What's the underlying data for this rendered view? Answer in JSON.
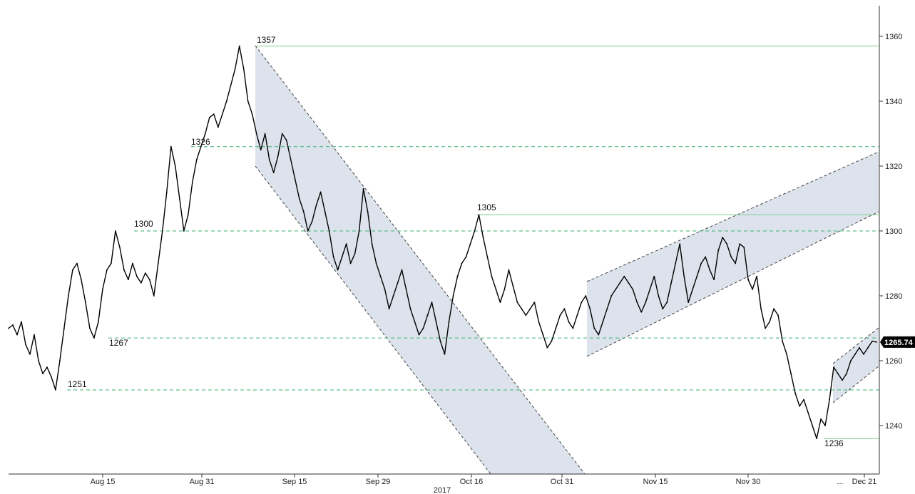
{
  "chart_data": {
    "type": "line",
    "title": "",
    "xlabel": "2017",
    "ylabel": "",
    "ylim": [
      1224,
      1370
    ],
    "grid": false,
    "y_ticks": [
      1240,
      1260,
      1280,
      1300,
      1320,
      1340,
      1360
    ],
    "x_ticks": [
      "Aug 15",
      "Aug 31",
      "Sep 15",
      "Sep 29",
      "Oct 16",
      "Oct 31",
      "Nov 15",
      "Nov 30",
      "...",
      "Dec 21"
    ],
    "series": [
      {
        "values": [
          1270,
          1271,
          1268,
          1272,
          1265,
          1262,
          1268,
          1260,
          1256,
          1258,
          1255,
          1251,
          1260,
          1270,
          1280,
          1288,
          1290,
          1285,
          1278,
          1270,
          1267,
          1272,
          1282,
          1288,
          1290,
          1300,
          1295,
          1288,
          1285,
          1290,
          1286,
          1284,
          1287,
          1285,
          1280,
          1290,
          1300,
          1312,
          1326,
          1320,
          1310,
          1300,
          1305,
          1315,
          1322,
          1326,
          1330,
          1335,
          1336,
          1332,
          1336,
          1340,
          1345,
          1350,
          1357,
          1350,
          1340,
          1336,
          1330,
          1325,
          1330,
          1322,
          1318,
          1323,
          1330,
          1328,
          1322,
          1316,
          1310,
          1306,
          1300,
          1303,
          1308,
          1312,
          1306,
          1300,
          1292,
          1288,
          1292,
          1296,
          1290,
          1293,
          1300,
          1313,
          1306,
          1296,
          1290,
          1286,
          1282,
          1276,
          1280,
          1284,
          1288,
          1282,
          1276,
          1272,
          1268,
          1270,
          1274,
          1278,
          1272,
          1266,
          1262,
          1272,
          1280,
          1286,
          1290,
          1292,
          1296,
          1300,
          1305,
          1298,
          1292,
          1286,
          1282,
          1278,
          1282,
          1288,
          1283,
          1278,
          1276,
          1274,
          1276,
          1278,
          1272,
          1268,
          1264,
          1266,
          1270,
          1274,
          1276,
          1272,
          1270,
          1274,
          1278,
          1280,
          1276,
          1270,
          1268,
          1272,
          1276,
          1280,
          1282,
          1284,
          1286,
          1284,
          1282,
          1278,
          1275,
          1278,
          1282,
          1286,
          1280,
          1276,
          1278,
          1284,
          1290,
          1296,
          1286,
          1278,
          1282,
          1286,
          1290,
          1292,
          1288,
          1285,
          1294,
          1298,
          1296,
          1292,
          1290,
          1296,
          1295,
          1285,
          1282,
          1286,
          1276,
          1270,
          1272,
          1276,
          1274,
          1266,
          1262,
          1256,
          1250,
          1246,
          1248,
          1244,
          1240,
          1236,
          1242,
          1240,
          1248,
          1258,
          1256,
          1254,
          1256,
          1260,
          1262,
          1264,
          1262,
          1264,
          1266,
          1265.74
        ]
      }
    ],
    "annotations": [
      "1357",
      "1326",
      "1305",
      "1300",
      "1267",
      "1251",
      "1236"
    ],
    "last_value_label": "1265.74",
    "colors": {
      "price_line": "#000000",
      "solid_level": "#7fcc8f",
      "dashed_level": "#3cb371",
      "channel_fill": "#dde3ec",
      "channel_border": "#444444",
      "last_value_bg": "#000000"
    }
  }
}
